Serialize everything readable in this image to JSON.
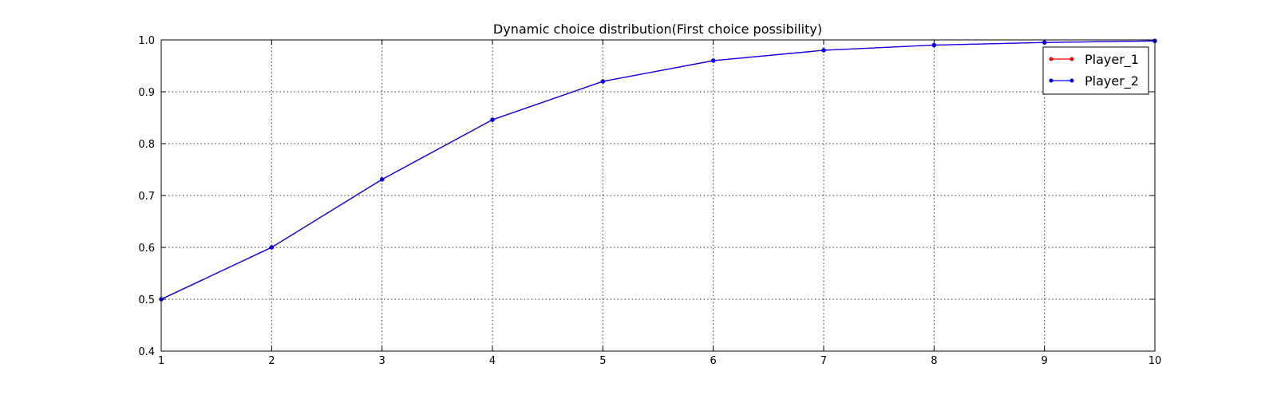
{
  "chart_data": {
    "type": "line",
    "title": "Dynamic choice distribution(First choice possibility)",
    "xlabel": "",
    "ylabel": "",
    "x": [
      1,
      2,
      3,
      4,
      5,
      6,
      7,
      8,
      9,
      10
    ],
    "xlim": [
      1,
      10
    ],
    "ylim": [
      0.4,
      1.0
    ],
    "xticks": [
      "1",
      "2",
      "3",
      "4",
      "5",
      "6",
      "7",
      "8",
      "9",
      "10"
    ],
    "yticks": [
      "0.4",
      "0.5",
      "0.6",
      "0.7",
      "0.8",
      "0.9",
      "1.0"
    ],
    "grid": true,
    "legend_position": "top-right",
    "series": [
      {
        "name": "Player_1",
        "color": "#ff0000",
        "values": [
          0.5,
          0.6,
          0.731,
          0.846,
          0.92,
          0.96,
          0.98,
          0.99,
          0.995,
          0.998
        ]
      },
      {
        "name": "Player_2",
        "color": "#0000ff",
        "values": [
          0.5,
          0.6,
          0.731,
          0.846,
          0.92,
          0.96,
          0.98,
          0.99,
          0.995,
          0.998
        ]
      }
    ]
  }
}
